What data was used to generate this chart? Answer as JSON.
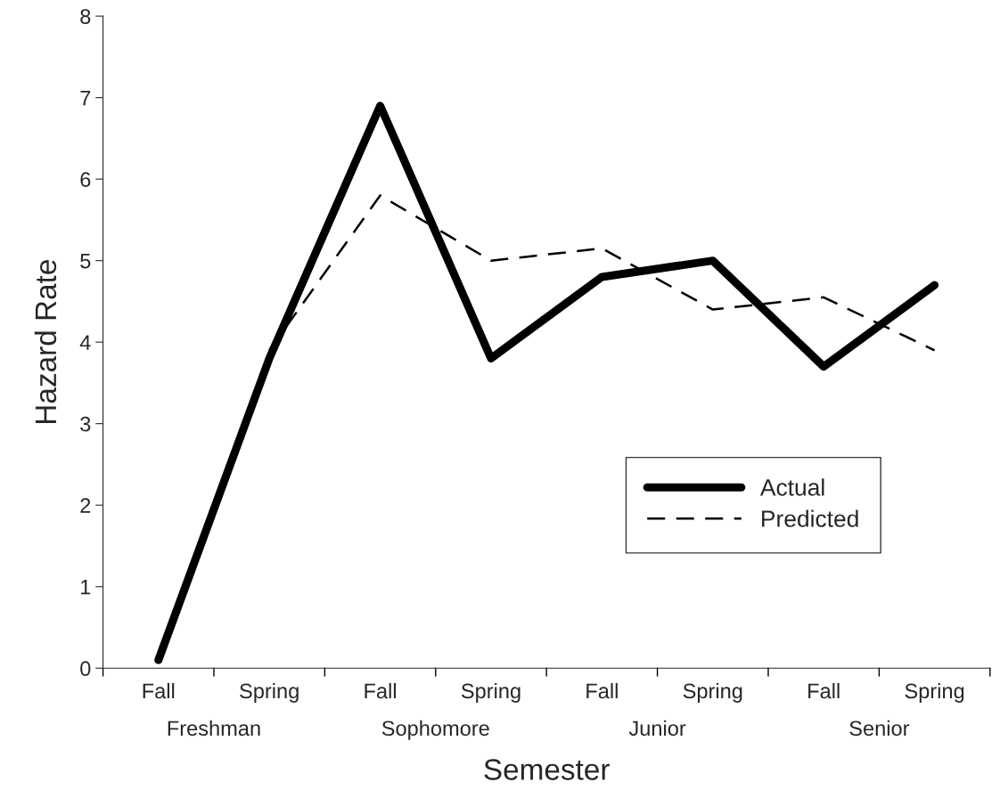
{
  "chart_data": {
    "type": "line",
    "xlabel": "Semester",
    "ylabel": "Hazard Rate",
    "categories": [
      "Fall",
      "Spring",
      "Fall",
      "Spring",
      "Fall",
      "Spring",
      "Fall",
      "Spring"
    ],
    "annotations": [
      "Freshman",
      "Sophomore",
      "Junior",
      "Senior"
    ],
    "series": [
      {
        "name": "Actual",
        "color": "#000000",
        "line_style": "solid",
        "values": [
          0.1,
          3.8,
          6.9,
          3.8,
          4.8,
          5.0,
          3.7,
          4.7
        ]
      },
      {
        "name": "Predicted",
        "color": "#000000",
        "line_style": "dashed",
        "values": [
          null,
          3.9,
          5.8,
          5.0,
          5.15,
          4.4,
          4.55,
          3.9
        ]
      }
    ],
    "ylim": [
      0,
      8
    ],
    "yticks": [
      0,
      1,
      2,
      3,
      4,
      5,
      6,
      7,
      8
    ],
    "grid": false,
    "legend": "right"
  }
}
